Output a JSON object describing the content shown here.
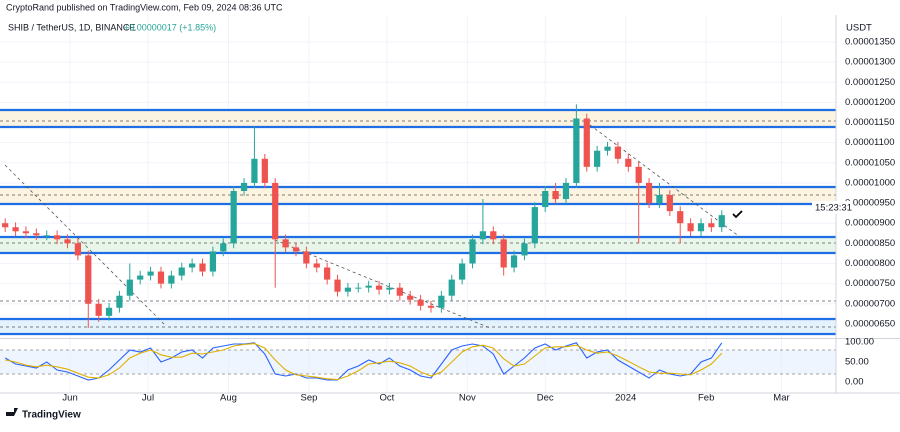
{
  "header": {
    "publisher": "CryptoRand published on TradingView.com, Feb 09, 2024 08:36 UTC",
    "symbol": "SHIB / TetherUS, 1D, BINANCE",
    "change": "+0.00000017 (+1.85%)",
    "countdown": "15:23:31",
    "currency": "USDT",
    "brand": "TradingView"
  },
  "chart_data": [
    {
      "type": "candlestick",
      "up_color": "#26a69a",
      "down_color": "#ef5350",
      "open": [
        9e-06,
        8.9e-06,
        8.8e-06,
        8.75e-06,
        8.7e-06,
        8.7e-06,
        8.6e-06,
        8.5e-06,
        8.2e-06,
        7e-06,
        6.7e-06,
        6.9e-06,
        7.2e-06,
        7.6e-06,
        7.7e-06,
        7.8e-06,
        7.5e-06,
        7.7e-06,
        7.9e-06,
        8e-06,
        7.8e-06,
        8.3e-06,
        8.5e-06,
        9.8e-06,
        1e-05,
        1.06e-05,
        1e-05,
        8.6e-06,
        8.4e-06,
        8.3e-06,
        8e-06,
        7.9e-06,
        7.6e-06,
        7.3e-06,
        7.4e-06,
        7.4e-06,
        7.45e-06,
        7.35e-06,
        7.4e-06,
        7.2e-06,
        7.1e-06,
        6.95e-06,
        6.9e-06,
        7.2e-06,
        7.6e-06,
        8e-06,
        8.6e-06,
        8.8e-06,
        8.6e-06,
        7.9e-06,
        8.2e-06,
        8.5e-06,
        9.4e-06,
        9.8e-06,
        9.6e-06,
        1e-05,
        1.16e-05,
        1.04e-05,
        1.08e-05,
        1.09e-05,
        1.06e-05,
        1.04e-05,
        1e-05,
        9.5e-06,
        9.7e-06,
        9.3e-06,
        9e-06,
        8.8e-06,
        9e-06,
        8.9e-06
      ],
      "high": [
        9.12e-06,
        9.02e-06,
        8.92e-06,
        8.87e-06,
        8.82e-06,
        8.82e-06,
        8.72e-06,
        8.62e-06,
        8.32e-06,
        7.12e-06,
        7.02e-06,
        7.32e-06,
        8e-06,
        7.82e-06,
        7.92e-06,
        7.92e-06,
        7.82e-06,
        8.02e-06,
        8.12e-06,
        8.12e-06,
        8.42e-06,
        8.62e-06,
        9.92e-06,
        1.012e-05,
        1.14e-05,
        1.072e-05,
        1.012e-05,
        8.72e-06,
        8.52e-06,
        8.42e-06,
        8.12e-06,
        8.02e-06,
        7.72e-06,
        7.52e-06,
        7.52e-06,
        7.57e-06,
        7.57e-06,
        7.52e-06,
        7.52e-06,
        7.32e-06,
        7.22e-06,
        7.07e-06,
        7.32e-06,
        7.72e-06,
        8.12e-06,
        8.72e-06,
        9.6e-06,
        8.92e-06,
        8.72e-06,
        8.32e-06,
        8.62e-06,
        9.52e-06,
        9.92e-06,
        1e-05,
        1.012e-05,
        1.195e-05,
        1.172e-05,
        1.092e-05,
        1.102e-05,
        1.102e-05,
        1.072e-05,
        1.052e-05,
        1.012e-05,
        1e-05,
        9.82e-06,
        9.42e-06,
        9.12e-06,
        9.12e-06,
        9.12e-06,
        9.32e-06
      ],
      "low": [
        8.78e-06,
        8.68e-06,
        8.63e-06,
        8.58e-06,
        8.58e-06,
        8.48e-06,
        8.38e-06,
        8.08e-06,
        6.4e-06,
        6.55e-06,
        6.58e-06,
        6.78e-06,
        7.08e-06,
        7.48e-06,
        7.58e-06,
        7.38e-06,
        7.38e-06,
        7.58e-06,
        7.78e-06,
        7.68e-06,
        7.68e-06,
        8.18e-06,
        8.38e-06,
        9.68e-06,
        9.88e-06,
        9.88e-06,
        7.4e-06,
        8.28e-06,
        8.18e-06,
        7.88e-06,
        7.78e-06,
        7.48e-06,
        7.18e-06,
        7.18e-06,
        7.28e-06,
        7.28e-06,
        7.23e-06,
        7.23e-06,
        7.08e-06,
        6.98e-06,
        6.83e-06,
        6.78e-06,
        6.78e-06,
        7.08e-06,
        7.48e-06,
        7.88e-06,
        8.48e-06,
        8.48e-06,
        7.7e-06,
        7.78e-06,
        8.08e-06,
        8.38e-06,
        9.28e-06,
        9.48e-06,
        9.48e-06,
        9.88e-06,
        1.028e-05,
        1.028e-05,
        1.068e-05,
        1.048e-05,
        1.028e-05,
        8.5e-06,
        9.38e-06,
        9.38e-06,
        9.18e-06,
        8.5e-06,
        8.68e-06,
        8.68e-06,
        8.78e-06,
        8.78e-06
      ],
      "close": [
        8.9e-06,
        8.8e-06,
        8.75e-06,
        8.7e-06,
        8.7e-06,
        8.6e-06,
        8.5e-06,
        8.2e-06,
        7e-06,
        6.7e-06,
        6.9e-06,
        7.2e-06,
        7.6e-06,
        7.7e-06,
        7.8e-06,
        7.5e-06,
        7.7e-06,
        7.9e-06,
        8e-06,
        7.8e-06,
        8.3e-06,
        8.5e-06,
        9.8e-06,
        1e-05,
        1.06e-05,
        1e-05,
        8.6e-06,
        8.4e-06,
        8.3e-06,
        8e-06,
        7.9e-06,
        7.6e-06,
        7.3e-06,
        7.4e-06,
        7.4e-06,
        7.45e-06,
        7.35e-06,
        7.4e-06,
        7.2e-06,
        7.1e-06,
        6.95e-06,
        6.9e-06,
        7.2e-06,
        7.6e-06,
        8e-06,
        8.6e-06,
        8.8e-06,
        8.6e-06,
        7.9e-06,
        8.2e-06,
        8.5e-06,
        9.4e-06,
        9.8e-06,
        9.6e-06,
        1e-05,
        1.16e-05,
        1.04e-05,
        1.08e-05,
        1.09e-05,
        1.06e-05,
        1.04e-05,
        1e-05,
        9.5e-06,
        9.7e-06,
        9.3e-06,
        9e-06,
        8.8e-06,
        9e-06,
        8.9e-06,
        9.2e-06
      ],
      "xlim": [
        -0.5,
        80
      ],
      "xticks": [
        {
          "value": 6.25,
          "label": "Jun"
        },
        {
          "value": 13.75,
          "label": "Jul"
        },
        {
          "value": 21.5,
          "label": "Aug"
        },
        {
          "value": 29.25,
          "label": "Sep"
        },
        {
          "value": 36.75,
          "label": "Oct"
        },
        {
          "value": 44.5,
          "label": "Nov"
        },
        {
          "value": 52,
          "label": "Dec"
        },
        {
          "value": 59.75,
          "label": "2024"
        },
        {
          "value": 67.5,
          "label": "Feb"
        },
        {
          "value": 74.75,
          "label": "Mar"
        }
      ],
      "ylim": [
        6.15e-06,
        1.417e-05
      ],
      "yticks": [
        {
          "value": 6.5e-06,
          "label": "0.00000650"
        },
        {
          "value": 7e-06,
          "label": "0.00000700"
        },
        {
          "value": 7.5e-06,
          "label": "0.00000750"
        },
        {
          "value": 8e-06,
          "label": "0.00000800"
        },
        {
          "value": 8.5e-06,
          "label": "0.00000850"
        },
        {
          "value": 9e-06,
          "label": "0.00000900"
        },
        {
          "value": 9.5e-06,
          "label": "0.00000950"
        },
        {
          "value": 1e-05,
          "label": "0.00001000"
        },
        {
          "value": 1.05e-05,
          "label": "0.00001050"
        },
        {
          "value": 1.1e-05,
          "label": "0.00001100"
        },
        {
          "value": 1.15e-05,
          "label": "0.00001150"
        },
        {
          "value": 1.2e-05,
          "label": "0.00001200"
        },
        {
          "value": 1.25e-05,
          "label": "0.00001250"
        },
        {
          "value": 1.3e-05,
          "label": "0.00001300"
        },
        {
          "value": 1.35e-05,
          "label": "0.00001350"
        }
      ],
      "grid": true
    },
    {
      "type": "line",
      "ylim": [
        -27.5,
        107.5
      ],
      "yticks": [
        {
          "value": 100,
          "label": "100.00"
        },
        {
          "value": 50,
          "label": "50.00"
        },
        {
          "value": 0,
          "label": "0.00"
        }
      ],
      "band": [
        20,
        80
      ],
      "series": [
        {
          "color": "#2962ff",
          "values": [
            60,
            45,
            40,
            35,
            50,
            30,
            25,
            15,
            5,
            10,
            30,
            55,
            80,
            75,
            85,
            50,
            60,
            75,
            80,
            60,
            85,
            90,
            95,
            95,
            98,
            70,
            20,
            15,
            20,
            10,
            10,
            5,
            5,
            30,
            40,
            55,
            45,
            60,
            40,
            30,
            15,
            10,
            45,
            80,
            90,
            95,
            90,
            70,
            20,
            40,
            60,
            85,
            95,
            80,
            90,
            98,
            60,
            75,
            80,
            55,
            40,
            25,
            10,
            30,
            20,
            15,
            20,
            50,
            60,
            98
          ]
        },
        {
          "color": "#e0b000",
          "values": [
            55,
            50,
            42,
            38,
            42,
            38,
            32,
            22,
            12,
            10,
            18,
            35,
            60,
            72,
            80,
            68,
            62,
            62,
            72,
            70,
            75,
            80,
            90,
            94,
            96,
            85,
            55,
            30,
            18,
            15,
            12,
            8,
            6,
            15,
            28,
            45,
            48,
            52,
            48,
            40,
            25,
            15,
            25,
            50,
            75,
            88,
            92,
            85,
            58,
            40,
            45,
            65,
            85,
            88,
            88,
            92,
            80,
            72,
            75,
            65,
            52,
            38,
            25,
            22,
            22,
            20,
            18,
            30,
            45,
            72
          ]
        }
      ]
    }
  ]
}
